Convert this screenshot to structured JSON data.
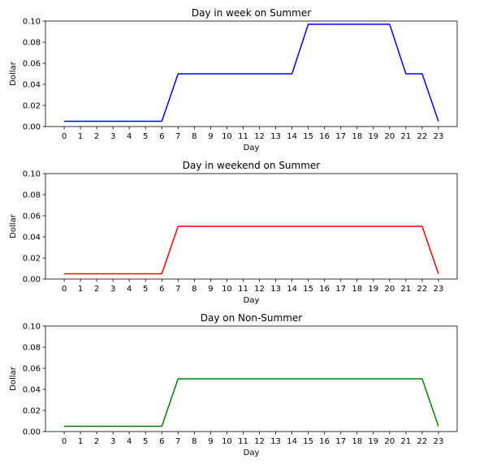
{
  "chart_data": [
    {
      "type": "line",
      "title": "Day in week on Summer",
      "xlabel": "Day",
      "ylabel": "Dollar",
      "x": [
        0,
        1,
        2,
        3,
        4,
        5,
        6,
        7,
        8,
        9,
        10,
        11,
        12,
        13,
        14,
        15,
        16,
        17,
        18,
        19,
        20,
        21,
        22,
        23
      ],
      "series": [
        {
          "values": [
            0.005,
            0.005,
            0.005,
            0.005,
            0.005,
            0.005,
            0.005,
            0.05,
            0.05,
            0.05,
            0.05,
            0.05,
            0.05,
            0.05,
            0.05,
            0.097,
            0.097,
            0.097,
            0.097,
            0.097,
            0.097,
            0.05,
            0.05,
            0.005
          ],
          "color": "#0000ff"
        }
      ],
      "xticks": [
        "0",
        "1",
        "2",
        "3",
        "4",
        "5",
        "6",
        "7",
        "8",
        "9",
        "10",
        "11",
        "12",
        "13",
        "14",
        "15",
        "16",
        "17",
        "18",
        "19",
        "20",
        "21",
        "22",
        "23"
      ],
      "ylim": [
        0,
        0.1
      ],
      "yticks": [
        "0.00",
        "0.02",
        "0.04",
        "0.06",
        "0.08",
        "0.10"
      ],
      "grid": false
    },
    {
      "type": "line",
      "title": "Day in weekend on Summer",
      "xlabel": "Day",
      "ylabel": "Dollar",
      "x": [
        0,
        1,
        2,
        3,
        4,
        5,
        6,
        7,
        8,
        9,
        10,
        11,
        12,
        13,
        14,
        15,
        16,
        17,
        18,
        19,
        20,
        21,
        22,
        23
      ],
      "series": [
        {
          "values": [
            0.005,
            0.005,
            0.005,
            0.005,
            0.005,
            0.005,
            0.005,
            0.05,
            0.05,
            0.05,
            0.05,
            0.05,
            0.05,
            0.05,
            0.05,
            0.05,
            0.05,
            0.05,
            0.05,
            0.05,
            0.05,
            0.05,
            0.05,
            0.005
          ],
          "color": "#ff0000"
        }
      ],
      "xticks": [
        "0",
        "1",
        "2",
        "3",
        "4",
        "5",
        "6",
        "7",
        "8",
        "9",
        "10",
        "11",
        "12",
        "13",
        "14",
        "15",
        "16",
        "17",
        "18",
        "19",
        "20",
        "21",
        "22",
        "23"
      ],
      "ylim": [
        0,
        0.1
      ],
      "yticks": [
        "0.00",
        "0.02",
        "0.04",
        "0.06",
        "0.08",
        "0.10"
      ],
      "grid": false
    },
    {
      "type": "line",
      "title": "Day on Non-Summer",
      "xlabel": "Day",
      "ylabel": "Dollar",
      "x": [
        0,
        1,
        2,
        3,
        4,
        5,
        6,
        7,
        8,
        9,
        10,
        11,
        12,
        13,
        14,
        15,
        16,
        17,
        18,
        19,
        20,
        21,
        22,
        23
      ],
      "series": [
        {
          "values": [
            0.005,
            0.005,
            0.005,
            0.005,
            0.005,
            0.005,
            0.005,
            0.05,
            0.05,
            0.05,
            0.05,
            0.05,
            0.05,
            0.05,
            0.05,
            0.05,
            0.05,
            0.05,
            0.05,
            0.05,
            0.05,
            0.05,
            0.05,
            0.005
          ],
          "color": "#008000"
        }
      ],
      "xticks": [
        "0",
        "1",
        "2",
        "3",
        "4",
        "5",
        "6",
        "7",
        "8",
        "9",
        "10",
        "11",
        "12",
        "13",
        "14",
        "15",
        "16",
        "17",
        "18",
        "19",
        "20",
        "21",
        "22",
        "23"
      ],
      "ylim": [
        0,
        0.1
      ],
      "yticks": [
        "0.00",
        "0.02",
        "0.04",
        "0.06",
        "0.08",
        "0.10"
      ],
      "grid": false
    }
  ]
}
